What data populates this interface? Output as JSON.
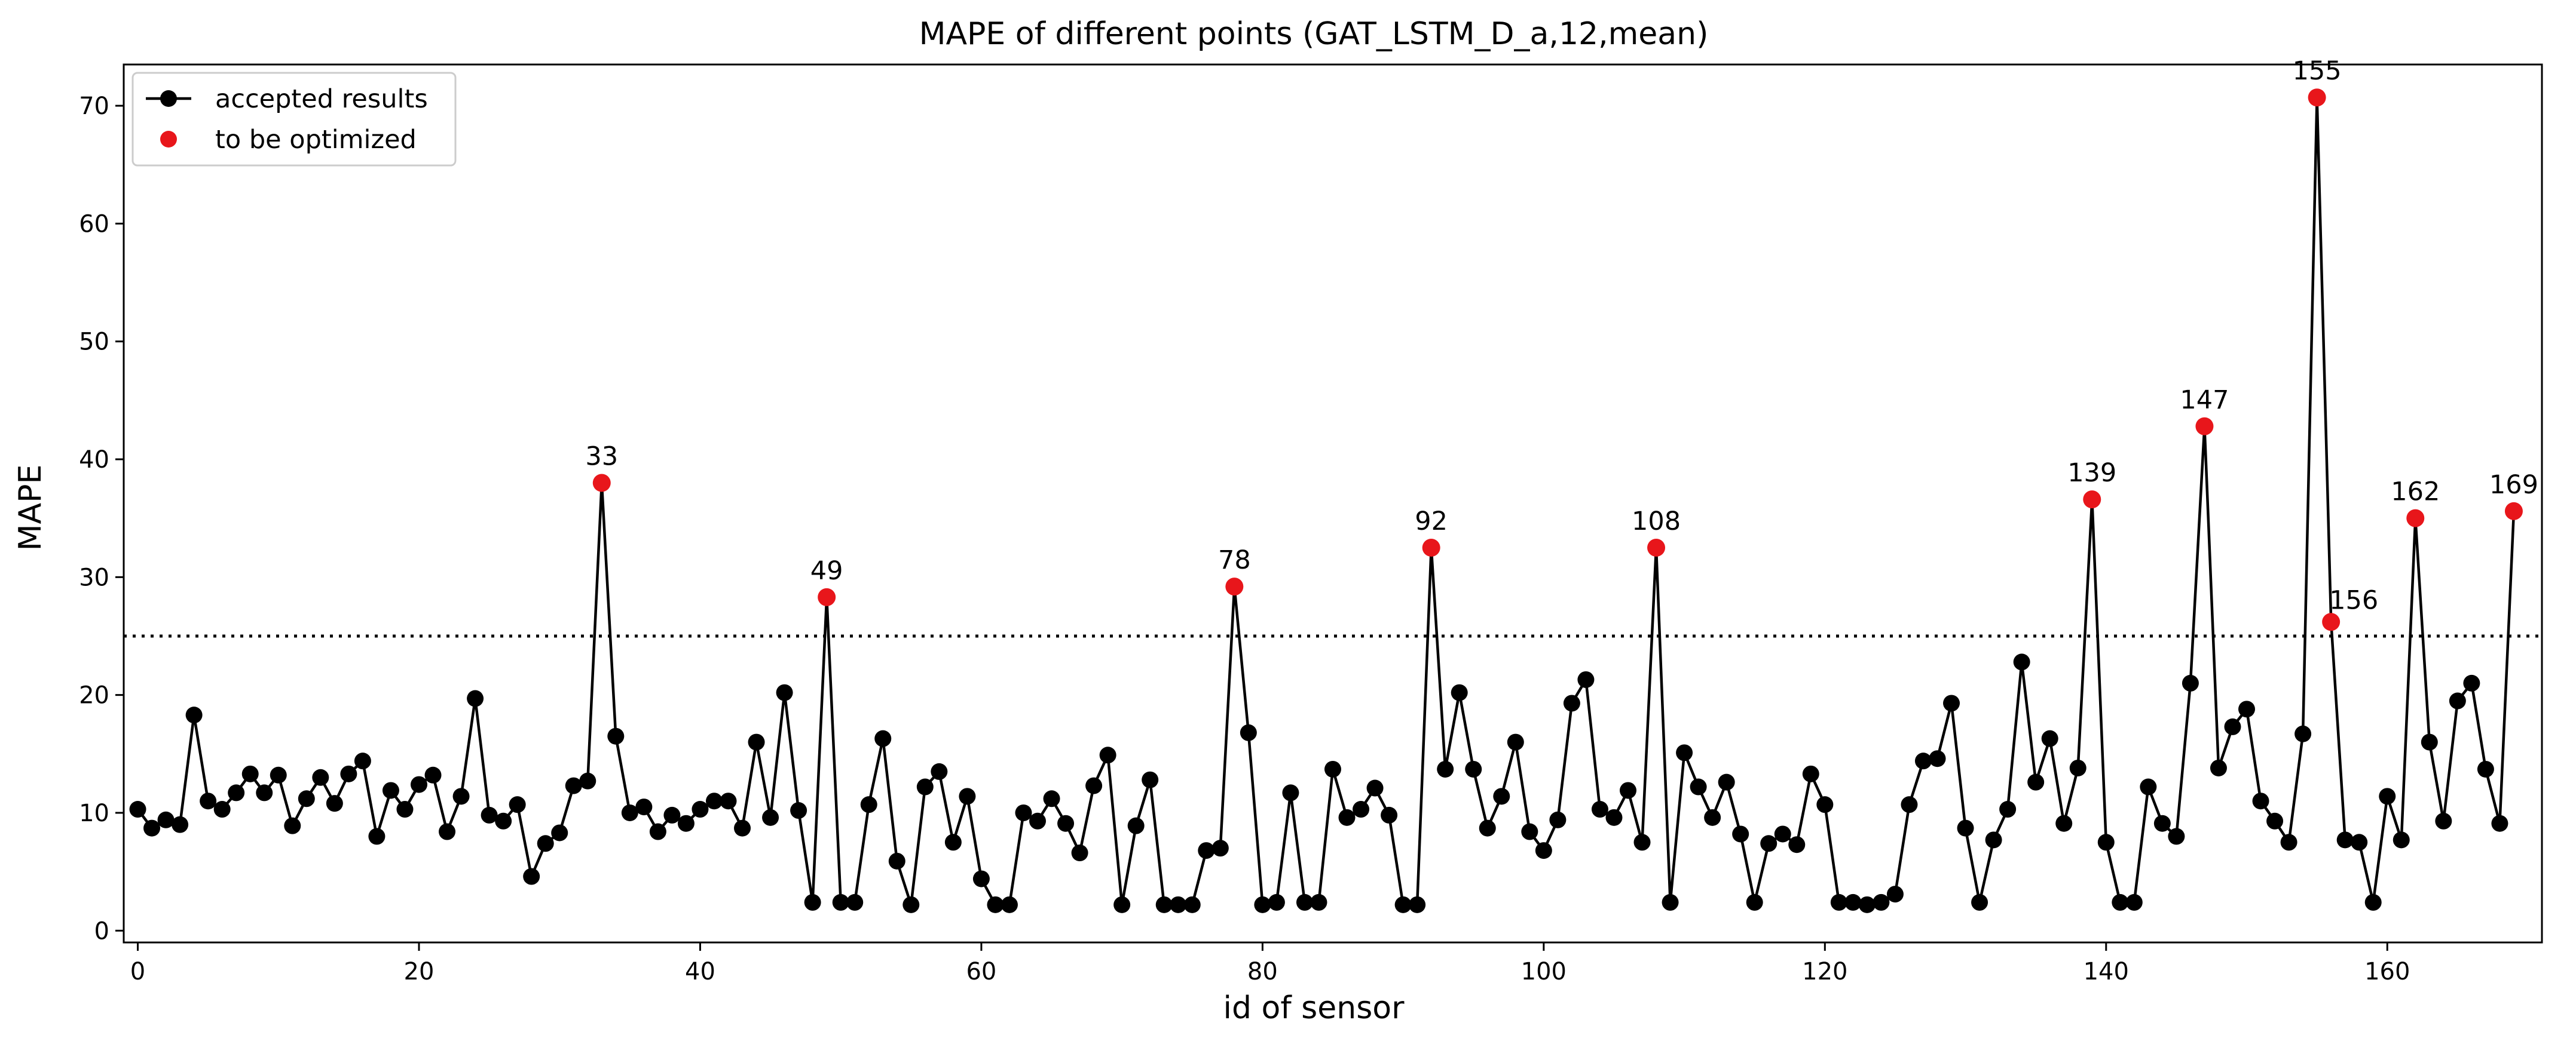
{
  "chart_data": {
    "type": "line",
    "title": "MAPE of different points (GAT_LSTM_D_a,12,mean)",
    "xlabel": "id of sensor",
    "ylabel": "MAPE",
    "xlim": [
      -1,
      171
    ],
    "ylim": [
      -1,
      73.5
    ],
    "xticks": [
      0,
      20,
      40,
      60,
      80,
      100,
      120,
      140,
      160
    ],
    "yticks": [
      0,
      10,
      20,
      30,
      40,
      50,
      60,
      70
    ],
    "threshold": 25,
    "legend": {
      "position": "top-left",
      "entries": [
        {
          "label": "accepted results",
          "style": "line-marker",
          "color": "#000000"
        },
        {
          "label": "to be optimized",
          "style": "marker",
          "color": "#e8161b"
        }
      ]
    },
    "series": [
      {
        "name": "accepted results",
        "color": "#000000",
        "x": [
          0,
          1,
          2,
          3,
          4,
          5,
          6,
          7,
          8,
          9,
          10,
          11,
          12,
          13,
          14,
          15,
          16,
          17,
          18,
          19,
          20,
          21,
          22,
          23,
          24,
          25,
          26,
          27,
          28,
          29,
          30,
          31,
          32,
          33,
          34,
          35,
          36,
          37,
          38,
          39,
          40,
          41,
          42,
          43,
          44,
          45,
          46,
          47,
          48,
          49,
          50,
          51,
          52,
          53,
          54,
          55,
          56,
          57,
          58,
          59,
          60,
          61,
          62,
          63,
          64,
          65,
          66,
          67,
          68,
          69,
          70,
          71,
          72,
          73,
          74,
          75,
          76,
          77,
          78,
          79,
          80,
          81,
          82,
          83,
          84,
          85,
          86,
          87,
          88,
          89,
          90,
          91,
          92,
          93,
          94,
          95,
          96,
          97,
          98,
          99,
          100,
          101,
          102,
          103,
          104,
          105,
          106,
          107,
          108,
          109,
          110,
          111,
          112,
          113,
          114,
          115,
          116,
          117,
          118,
          119,
          120,
          121,
          122,
          123,
          124,
          125,
          126,
          127,
          128,
          129,
          130,
          131,
          132,
          133,
          134,
          135,
          136,
          137,
          138,
          139,
          140,
          141,
          142,
          143,
          144,
          145,
          146,
          147,
          148,
          149,
          150,
          151,
          152,
          153,
          154,
          155,
          156,
          157,
          158,
          159,
          160,
          161,
          162,
          163,
          164,
          165,
          166,
          167,
          168,
          169
        ],
        "values": [
          10.3,
          8.7,
          9.4,
          9.0,
          18.3,
          11.0,
          10.3,
          11.7,
          13.3,
          11.7,
          13.2,
          8.9,
          11.2,
          13.0,
          10.8,
          13.3,
          14.4,
          8.0,
          11.9,
          10.3,
          12.4,
          13.2,
          8.4,
          11.4,
          19.7,
          9.8,
          9.3,
          10.7,
          4.6,
          7.4,
          8.3,
          12.3,
          12.7,
          38.0,
          16.5,
          10.0,
          10.5,
          8.4,
          9.8,
          9.1,
          10.3,
          11.0,
          11.0,
          8.7,
          16.0,
          9.6,
          20.2,
          10.2,
          2.4,
          28.3,
          2.4,
          2.4,
          10.7,
          16.3,
          5.9,
          2.2,
          12.2,
          13.5,
          7.5,
          11.4,
          4.4,
          2.2,
          2.2,
          10.0,
          9.3,
          11.2,
          9.1,
          6.6,
          12.3,
          14.9,
          2.2,
          8.9,
          12.8,
          2.2,
          2.2,
          2.2,
          6.8,
          7.0,
          29.2,
          16.8,
          2.2,
          2.4,
          11.7,
          2.4,
          2.4,
          13.7,
          9.6,
          10.3,
          12.1,
          9.8,
          2.2,
          2.2,
          32.5,
          13.7,
          20.2,
          13.7,
          8.7,
          11.4,
          16.0,
          8.4,
          6.8,
          9.4,
          19.3,
          21.3,
          10.3,
          9.6,
          11.9,
          7.5,
          32.5,
          2.4,
          15.1,
          12.2,
          9.6,
          12.6,
          8.2,
          2.4,
          7.4,
          8.2,
          7.3,
          13.3,
          10.7,
          2.4,
          2.4,
          2.2,
          2.4,
          3.1,
          10.7,
          14.4,
          14.6,
          19.3,
          8.7,
          2.4,
          7.7,
          10.3,
          22.8,
          12.6,
          16.3,
          9.1,
          13.8,
          36.6,
          7.5,
          2.4,
          2.4,
          12.2,
          9.1,
          8.0,
          21.0,
          42.8,
          13.8,
          17.3,
          18.8,
          11.0,
          9.3,
          7.5,
          16.7,
          70.7,
          26.2,
          7.7,
          7.5,
          2.4,
          11.4,
          7.7,
          35.0,
          16.0,
          9.3,
          19.5,
          21.0,
          13.7,
          9.1,
          35.6
        ]
      }
    ],
    "highlighted_points": [
      {
        "label": "33",
        "x": 33,
        "y": 38.0
      },
      {
        "label": "49",
        "x": 49,
        "y": 28.3
      },
      {
        "label": "78",
        "x": 78,
        "y": 29.2
      },
      {
        "label": "92",
        "x": 92,
        "y": 32.5
      },
      {
        "label": "108",
        "x": 108,
        "y": 32.5
      },
      {
        "label": "139",
        "x": 139,
        "y": 36.6
      },
      {
        "label": "147",
        "x": 147,
        "y": 42.8
      },
      {
        "label": "155",
        "x": 155,
        "y": 70.7
      },
      {
        "label": "156",
        "x": 156,
        "y": 26.2
      },
      {
        "label": "162",
        "x": 162,
        "y": 35.0
      },
      {
        "label": "169",
        "x": 169,
        "y": 35.6
      }
    ]
  }
}
